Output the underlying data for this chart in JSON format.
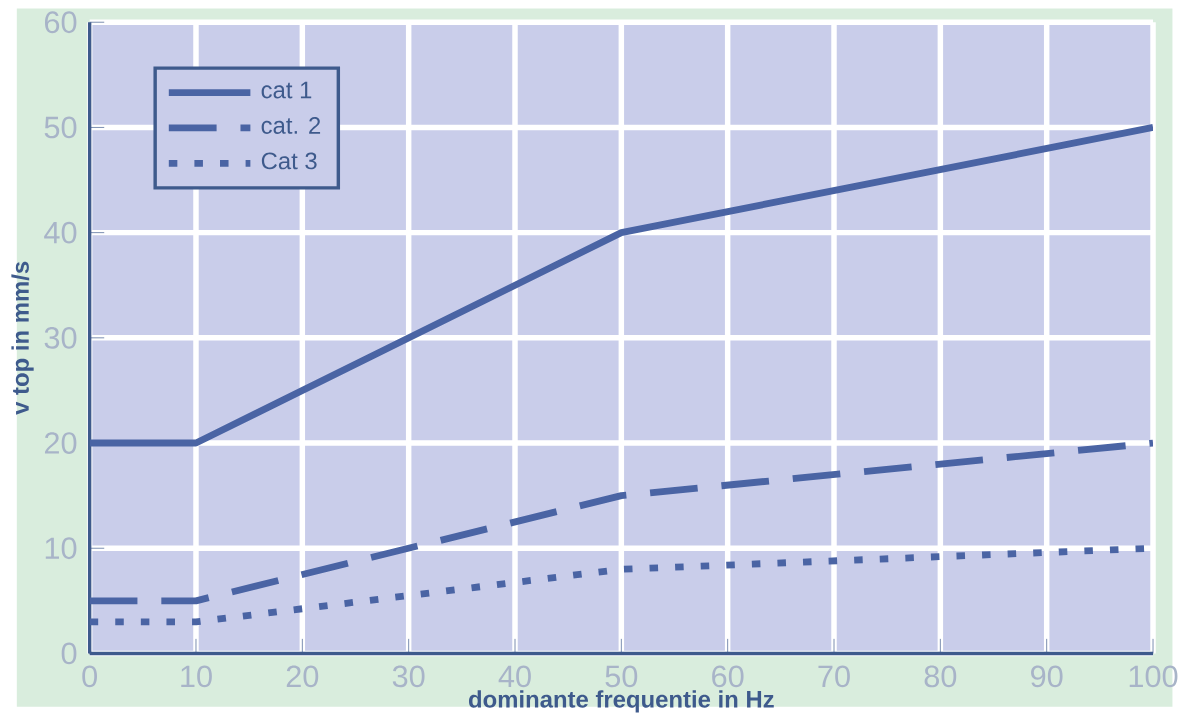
{
  "chart_data": {
    "type": "line",
    "xlabel": "dominante frequentie in Hz",
    "ylabel": "v top in mm/s",
    "xlim": [
      0,
      100
    ],
    "xticks": [
      0,
      10,
      20,
      30,
      40,
      50,
      60,
      70,
      80,
      90,
      100
    ],
    "ylim": [
      0,
      60
    ],
    "yticks": [
      0,
      10,
      20,
      30,
      40,
      50,
      60
    ],
    "grid": true,
    "legend": "top left",
    "marker": "none",
    "series": [
      {
        "name": "cat 1",
        "color": "#4a64a4",
        "x": [
          0,
          10,
          50,
          100
        ],
        "values": [
          20,
          20,
          40,
          50
        ],
        "line_style": "solid"
      },
      {
        "name": "cat. 2",
        "color": "#4a64a4",
        "x": [
          0,
          10,
          50,
          100
        ],
        "values": [
          5,
          5,
          15,
          20
        ],
        "line_style": "dashed"
      },
      {
        "name": "Cat 3",
        "color": "#4a64a4",
        "x": [
          0,
          10,
          50,
          100
        ],
        "values": [
          3,
          3,
          8,
          10
        ],
        "line_style": "dotted"
      }
    ]
  }
}
